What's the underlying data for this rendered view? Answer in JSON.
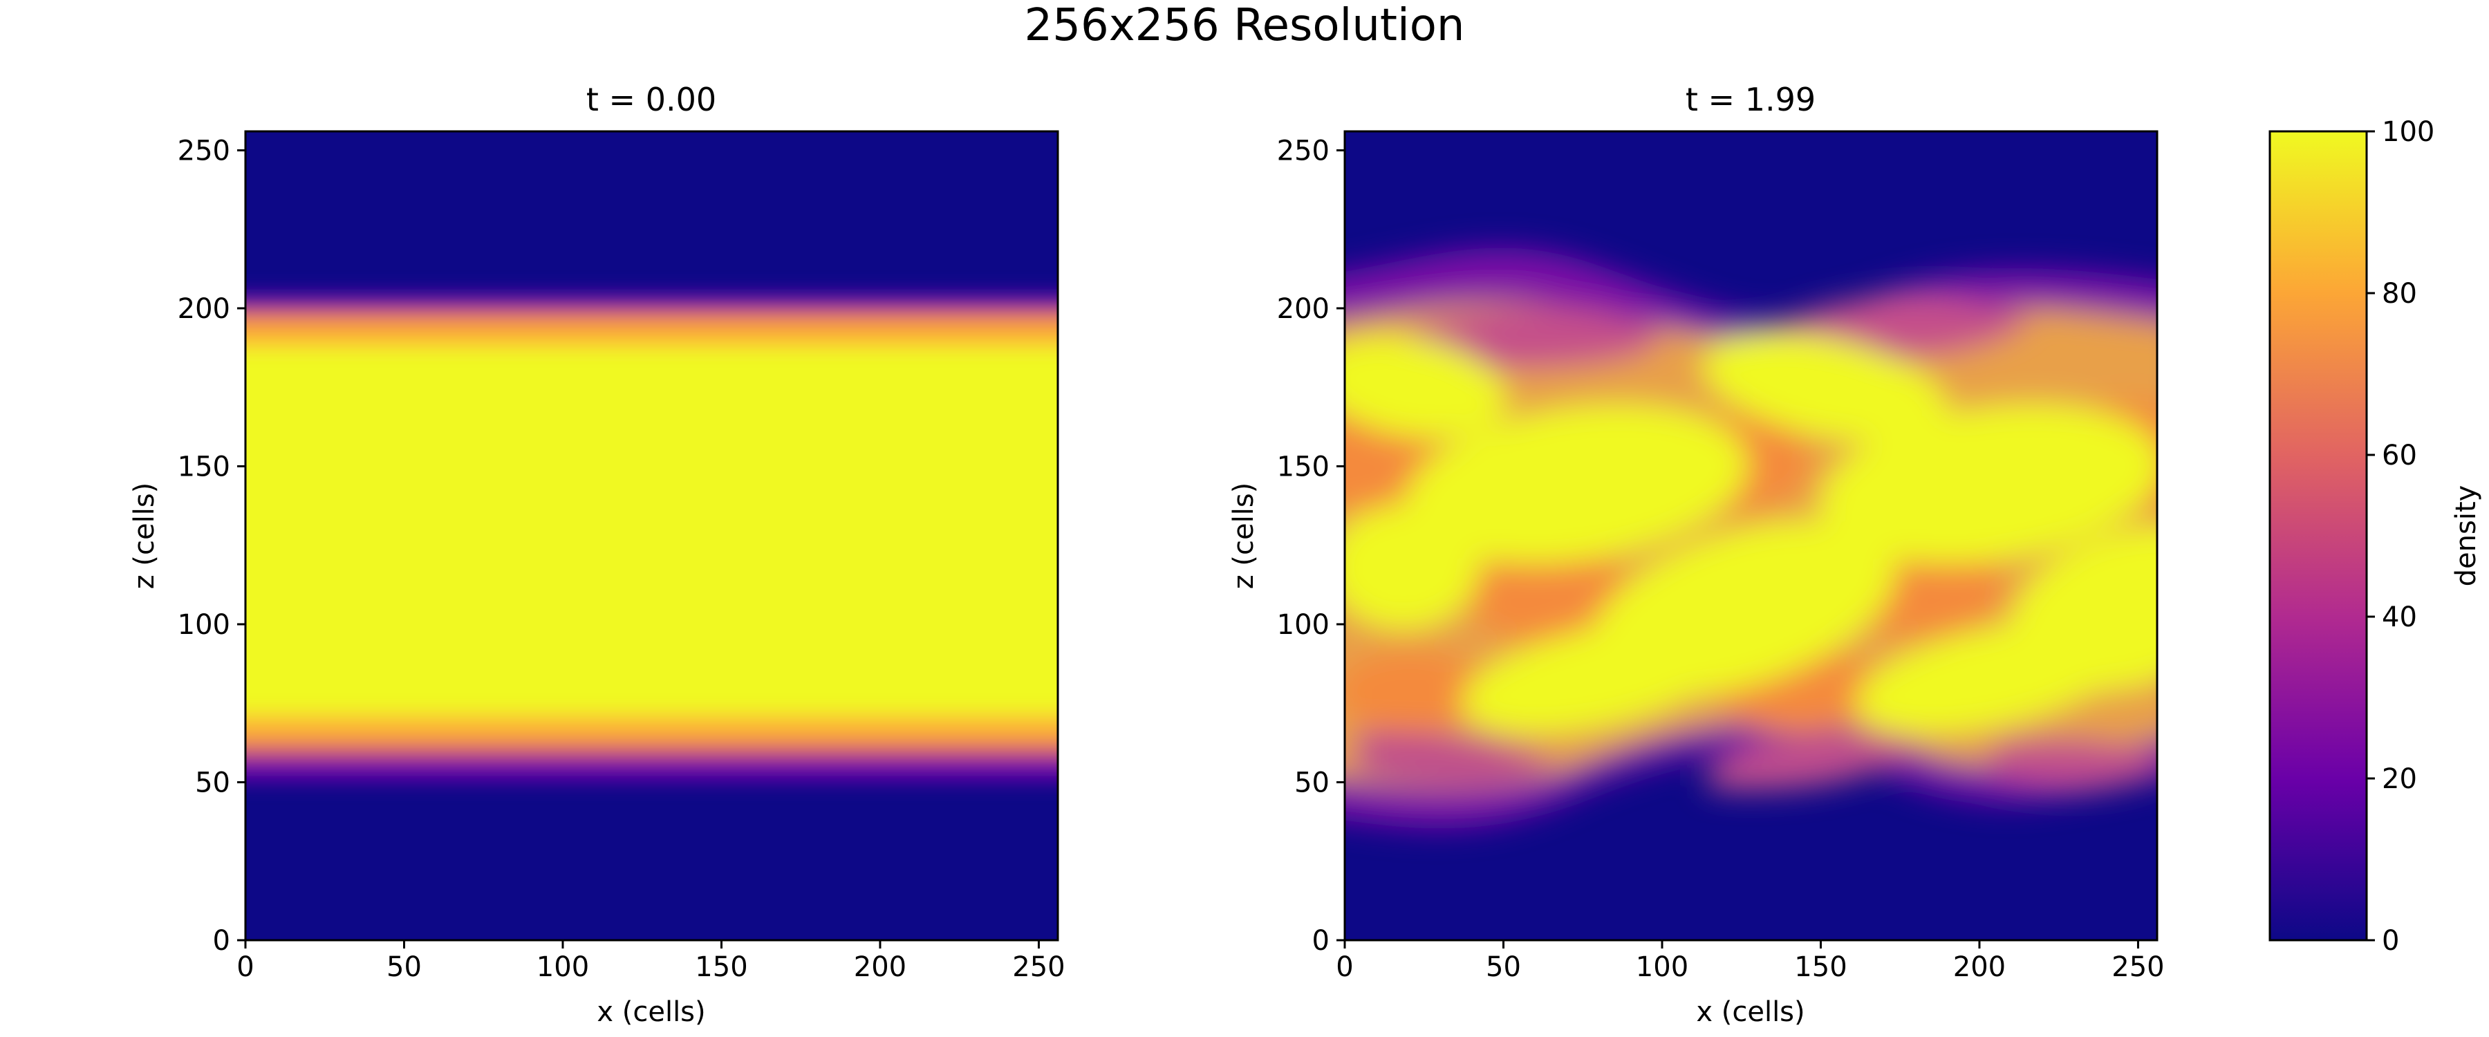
{
  "figure": {
    "suptitle": "256x256 Resolution"
  },
  "chart_data": [
    {
      "type": "heatmap",
      "title": "t = 0.00",
      "xlabel": "x (cells)",
      "ylabel": "z (cells)",
      "xlim": [
        0,
        256
      ],
      "ylim": [
        0,
        256
      ],
      "xticks": [
        0,
        50,
        100,
        150,
        200,
        250
      ],
      "yticks": [
        0,
        50,
        100,
        150,
        200,
        250
      ],
      "field": "density",
      "grid": false,
      "description_values": {
        "background_density": 0,
        "band_density": 100,
        "band_z_range": [
          64,
          192
        ]
      }
    },
    {
      "type": "heatmap",
      "title": "t = 1.99",
      "xlabel": "x (cells)",
      "ylabel": "z (cells)",
      "xlim": [
        0,
        256
      ],
      "ylim": [
        0,
        256
      ],
      "xticks": [
        0,
        50,
        100,
        150,
        200,
        250
      ],
      "yticks": [
        0,
        50,
        100,
        150,
        200,
        250
      ],
      "field": "density",
      "grid": false
    }
  ],
  "colorbar": {
    "label": "density",
    "range": [
      0,
      100
    ],
    "ticks": [
      0,
      20,
      40,
      60,
      80,
      100
    ],
    "colormap": "plasma",
    "stops": [
      "#0d0887",
      "#6a00a8",
      "#b12a90",
      "#e16462",
      "#fca636",
      "#f0f921"
    ]
  }
}
